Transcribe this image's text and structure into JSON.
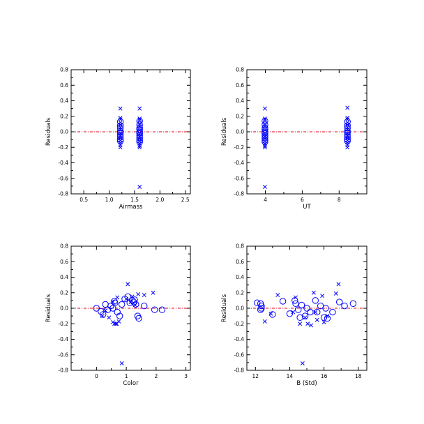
{
  "chart_data": [
    {
      "type": "scatter",
      "xlabel": "Airmass",
      "ylabel": "Residuals",
      "xlim": [
        0.25,
        2.6
      ],
      "ylim": [
        -0.8,
        0.8
      ],
      "xticks": [
        0.5,
        1.0,
        1.5,
        2.0,
        2.5
      ],
      "xtick_labels": [
        "0.5",
        "1.0",
        "1.5",
        "2.0",
        "2.5"
      ],
      "yticks": [
        -0.8,
        -0.6,
        -0.4,
        -0.2,
        0.0,
        0.2,
        0.4,
        0.6,
        0.8
      ],
      "ytick_labels": [
        "-0.8",
        "-0.6",
        "-0.4",
        "-0.2",
        "0.0",
        "0.2",
        "0.4",
        "0.6",
        "0.8"
      ],
      "zero_line": 0.0,
      "series": [
        {
          "marker": "x",
          "points": [
            [
              1.22,
              0.3
            ],
            [
              1.22,
              0.18
            ],
            [
              1.22,
              0.16
            ],
            [
              1.22,
              0.12
            ],
            [
              1.22,
              0.09
            ],
            [
              1.22,
              0.06
            ],
            [
              1.22,
              0.03
            ],
            [
              1.22,
              -0.02
            ],
            [
              1.22,
              -0.05
            ],
            [
              1.22,
              -0.08
            ],
            [
              1.22,
              -0.11
            ],
            [
              1.22,
              -0.14
            ],
            [
              1.22,
              -0.17
            ],
            [
              1.22,
              -0.2
            ],
            [
              1.6,
              0.3
            ],
            [
              1.6,
              0.17
            ],
            [
              1.6,
              0.15
            ],
            [
              1.6,
              0.1
            ],
            [
              1.6,
              0.07
            ],
            [
              1.6,
              0.02
            ],
            [
              1.6,
              -0.03
            ],
            [
              1.6,
              -0.06
            ],
            [
              1.6,
              -0.09
            ],
            [
              1.6,
              -0.12
            ],
            [
              1.6,
              -0.15
            ],
            [
              1.6,
              -0.18
            ],
            [
              1.6,
              -0.2
            ],
            [
              1.6,
              -0.71
            ]
          ]
        },
        {
          "marker": "o",
          "points": [
            [
              1.22,
              0.13
            ],
            [
              1.22,
              0.08
            ],
            [
              1.22,
              0.05
            ],
            [
              1.22,
              0.01
            ],
            [
              1.22,
              -0.01
            ],
            [
              1.22,
              -0.04
            ],
            [
              1.22,
              -0.07
            ],
            [
              1.22,
              -0.1
            ],
            [
              1.22,
              -0.12
            ],
            [
              1.6,
              0.14
            ],
            [
              1.6,
              0.09
            ],
            [
              1.6,
              0.05
            ],
            [
              1.6,
              0.03
            ],
            [
              1.6,
              0.0
            ],
            [
              1.6,
              -0.02
            ],
            [
              1.6,
              -0.05
            ],
            [
              1.6,
              -0.08
            ],
            [
              1.6,
              -0.11
            ],
            [
              1.6,
              -0.13
            ]
          ]
        }
      ]
    },
    {
      "type": "scatter",
      "xlabel": "UT",
      "ylabel": "Residuals",
      "xlim": [
        3.0,
        9.5
      ],
      "ylim": [
        -0.8,
        0.8
      ],
      "xticks": [
        4,
        6,
        8
      ],
      "xtick_labels": [
        "4",
        "6",
        "8"
      ],
      "yticks": [
        -0.8,
        -0.6,
        -0.4,
        -0.2,
        0.0,
        0.2,
        0.4,
        0.6,
        0.8
      ],
      "ytick_labels": [
        "-0.8",
        "-0.6",
        "-0.4",
        "-0.2",
        "0.0",
        "0.2",
        "0.4",
        "0.6",
        "0.8"
      ],
      "zero_line": 0.0,
      "series": [
        {
          "marker": "x",
          "points": [
            [
              3.98,
              0.3
            ],
            [
              3.98,
              0.17
            ],
            [
              3.98,
              0.15
            ],
            [
              3.98,
              0.1
            ],
            [
              3.98,
              0.07
            ],
            [
              3.98,
              0.02
            ],
            [
              3.98,
              -0.03
            ],
            [
              3.98,
              -0.06
            ],
            [
              3.98,
              -0.09
            ],
            [
              3.98,
              -0.12
            ],
            [
              3.98,
              -0.15
            ],
            [
              3.98,
              -0.18
            ],
            [
              3.98,
              -0.2
            ],
            [
              3.98,
              -0.71
            ],
            [
              8.45,
              0.31
            ],
            [
              8.45,
              0.18
            ],
            [
              8.45,
              0.16
            ],
            [
              8.45,
              0.12
            ],
            [
              8.45,
              0.09
            ],
            [
              8.45,
              0.06
            ],
            [
              8.45,
              0.03
            ],
            [
              8.45,
              -0.02
            ],
            [
              8.45,
              -0.05
            ],
            [
              8.45,
              -0.08
            ],
            [
              8.45,
              -0.11
            ],
            [
              8.45,
              -0.14
            ],
            [
              8.45,
              -0.17
            ],
            [
              8.45,
              -0.2
            ]
          ]
        },
        {
          "marker": "o",
          "points": [
            [
              3.98,
              0.14
            ],
            [
              3.98,
              0.09
            ],
            [
              3.98,
              0.05
            ],
            [
              3.98,
              0.03
            ],
            [
              3.98,
              0.0
            ],
            [
              3.98,
              -0.02
            ],
            [
              3.98,
              -0.05
            ],
            [
              3.98,
              -0.08
            ],
            [
              3.98,
              -0.11
            ],
            [
              3.98,
              -0.13
            ],
            [
              8.45,
              0.13
            ],
            [
              8.45,
              0.08
            ],
            [
              8.45,
              0.05
            ],
            [
              8.45,
              0.01
            ],
            [
              8.45,
              -0.01
            ],
            [
              8.45,
              -0.04
            ],
            [
              8.45,
              -0.07
            ],
            [
              8.45,
              -0.1
            ],
            [
              8.45,
              -0.12
            ]
          ]
        }
      ]
    },
    {
      "type": "scatter",
      "xlabel": "Color",
      "ylabel": "Residuals",
      "xlim": [
        -0.85,
        3.15
      ],
      "ylim": [
        -0.8,
        0.8
      ],
      "xticks": [
        0,
        1,
        2,
        3
      ],
      "xtick_labels": [
        "0",
        "1",
        "2",
        "3"
      ],
      "yticks": [
        -0.8,
        -0.6,
        -0.4,
        -0.2,
        0.0,
        0.2,
        0.4,
        0.6,
        0.8
      ],
      "ytick_labels": [
        "-0.8",
        "-0.6",
        "-0.4",
        "-0.2",
        "0.0",
        "0.2",
        "0.4",
        "0.6",
        "0.8"
      ],
      "zero_line": 0.0,
      "series": [
        {
          "marker": "x",
          "points": [
            [
              1.05,
              0.31
            ],
            [
              1.9,
              0.2
            ],
            [
              1.4,
              0.18
            ],
            [
              1.6,
              0.17
            ],
            [
              1.2,
              0.15
            ],
            [
              0.7,
              0.14
            ],
            [
              1.0,
              0.12
            ],
            [
              0.55,
              0.08
            ],
            [
              0.3,
              -0.03
            ],
            [
              0.2,
              -0.1
            ],
            [
              0.42,
              -0.12
            ],
            [
              0.55,
              -0.18
            ],
            [
              0.6,
              -0.2
            ],
            [
              0.68,
              -0.2
            ],
            [
              0.75,
              -0.17
            ],
            [
              1.3,
              0.04
            ],
            [
              1.15,
              0.08
            ],
            [
              0.65,
              -0.2
            ],
            [
              0.85,
              -0.71
            ]
          ]
        },
        {
          "marker": "o",
          "points": [
            [
              0.0,
              0.0
            ],
            [
              0.15,
              -0.04
            ],
            [
              0.22,
              -0.08
            ],
            [
              0.3,
              0.05
            ],
            [
              0.38,
              -0.02
            ],
            [
              0.48,
              0.03
            ],
            [
              0.55,
              0.0
            ],
            [
              0.6,
              0.09
            ],
            [
              0.62,
              0.07
            ],
            [
              0.7,
              -0.05
            ],
            [
              0.78,
              -0.1
            ],
            [
              0.85,
              0.05
            ],
            [
              0.95,
              0.12
            ],
            [
              1.05,
              0.15
            ],
            [
              1.12,
              0.07
            ],
            [
              1.2,
              0.1
            ],
            [
              1.25,
              0.08
            ],
            [
              1.32,
              0.05
            ],
            [
              1.38,
              -0.1
            ],
            [
              1.42,
              -0.13
            ],
            [
              1.6,
              0.03
            ],
            [
              1.95,
              -0.02
            ],
            [
              2.2,
              -0.02
            ],
            [
              1.28,
              0.11
            ]
          ]
        }
      ]
    },
    {
      "type": "scatter",
      "xlabel": "B (Std)",
      "ylabel": "Residuals",
      "xlim": [
        11.5,
        18.5
      ],
      "ylim": [
        -0.8,
        0.8
      ],
      "xticks": [
        12,
        14,
        16,
        18
      ],
      "xtick_labels": [
        "12",
        "14",
        "16",
        "18"
      ],
      "yticks": [
        -0.8,
        -0.6,
        -0.4,
        -0.2,
        0.0,
        0.2,
        0.4,
        0.6,
        0.8
      ],
      "ytick_labels": [
        "-0.8",
        "-0.6",
        "-0.4",
        "-0.2",
        "0.0",
        "0.2",
        "0.4",
        "0.6",
        "0.8"
      ],
      "zero_line": 0.0,
      "series": [
        {
          "marker": "x",
          "points": [
            [
              16.85,
              0.31
            ],
            [
              15.4,
              0.2
            ],
            [
              16.7,
              0.19
            ],
            [
              13.3,
              0.17
            ],
            [
              15.9,
              0.16
            ],
            [
              14.35,
              0.14
            ],
            [
              15.05,
              -0.2
            ],
            [
              15.25,
              -0.22
            ],
            [
              12.9,
              -0.07
            ],
            [
              14.6,
              -0.2
            ],
            [
              15.6,
              -0.15
            ],
            [
              16.0,
              -0.18
            ],
            [
              12.55,
              -0.17
            ],
            [
              14.2,
              -0.05
            ],
            [
              14.9,
              -0.12
            ],
            [
              16.2,
              -0.1
            ],
            [
              14.75,
              -0.71
            ],
            [
              15.5,
              -0.05
            ]
          ]
        },
        {
          "marker": "o",
          "points": [
            [
              12.1,
              0.07
            ],
            [
              12.3,
              0.06
            ],
            [
              12.35,
              0.03
            ],
            [
              12.3,
              -0.02
            ],
            [
              13.0,
              -0.08
            ],
            [
              13.6,
              0.09
            ],
            [
              14.0,
              -0.07
            ],
            [
              14.3,
              0.1
            ],
            [
              14.35,
              0.06
            ],
            [
              14.5,
              -0.02
            ],
            [
              14.7,
              0.04
            ],
            [
              14.9,
              -0.1
            ],
            [
              15.0,
              0.0
            ],
            [
              15.2,
              -0.05
            ],
            [
              15.5,
              0.1
            ],
            [
              15.8,
              0.03
            ],
            [
              16.0,
              -0.12
            ],
            [
              16.1,
              0.0
            ],
            [
              16.5,
              -0.05
            ],
            [
              16.9,
              0.08
            ],
            [
              17.2,
              0.03
            ],
            [
              17.7,
              0.06
            ],
            [
              12.35,
              0.0
            ],
            [
              14.6,
              -0.12
            ],
            [
              16.2,
              -0.13
            ],
            [
              15.6,
              -0.05
            ]
          ]
        }
      ]
    }
  ],
  "style": {
    "marker_color": "#0000ff",
    "zero_line_color": "#e0001a",
    "axis_color": "#000000"
  }
}
